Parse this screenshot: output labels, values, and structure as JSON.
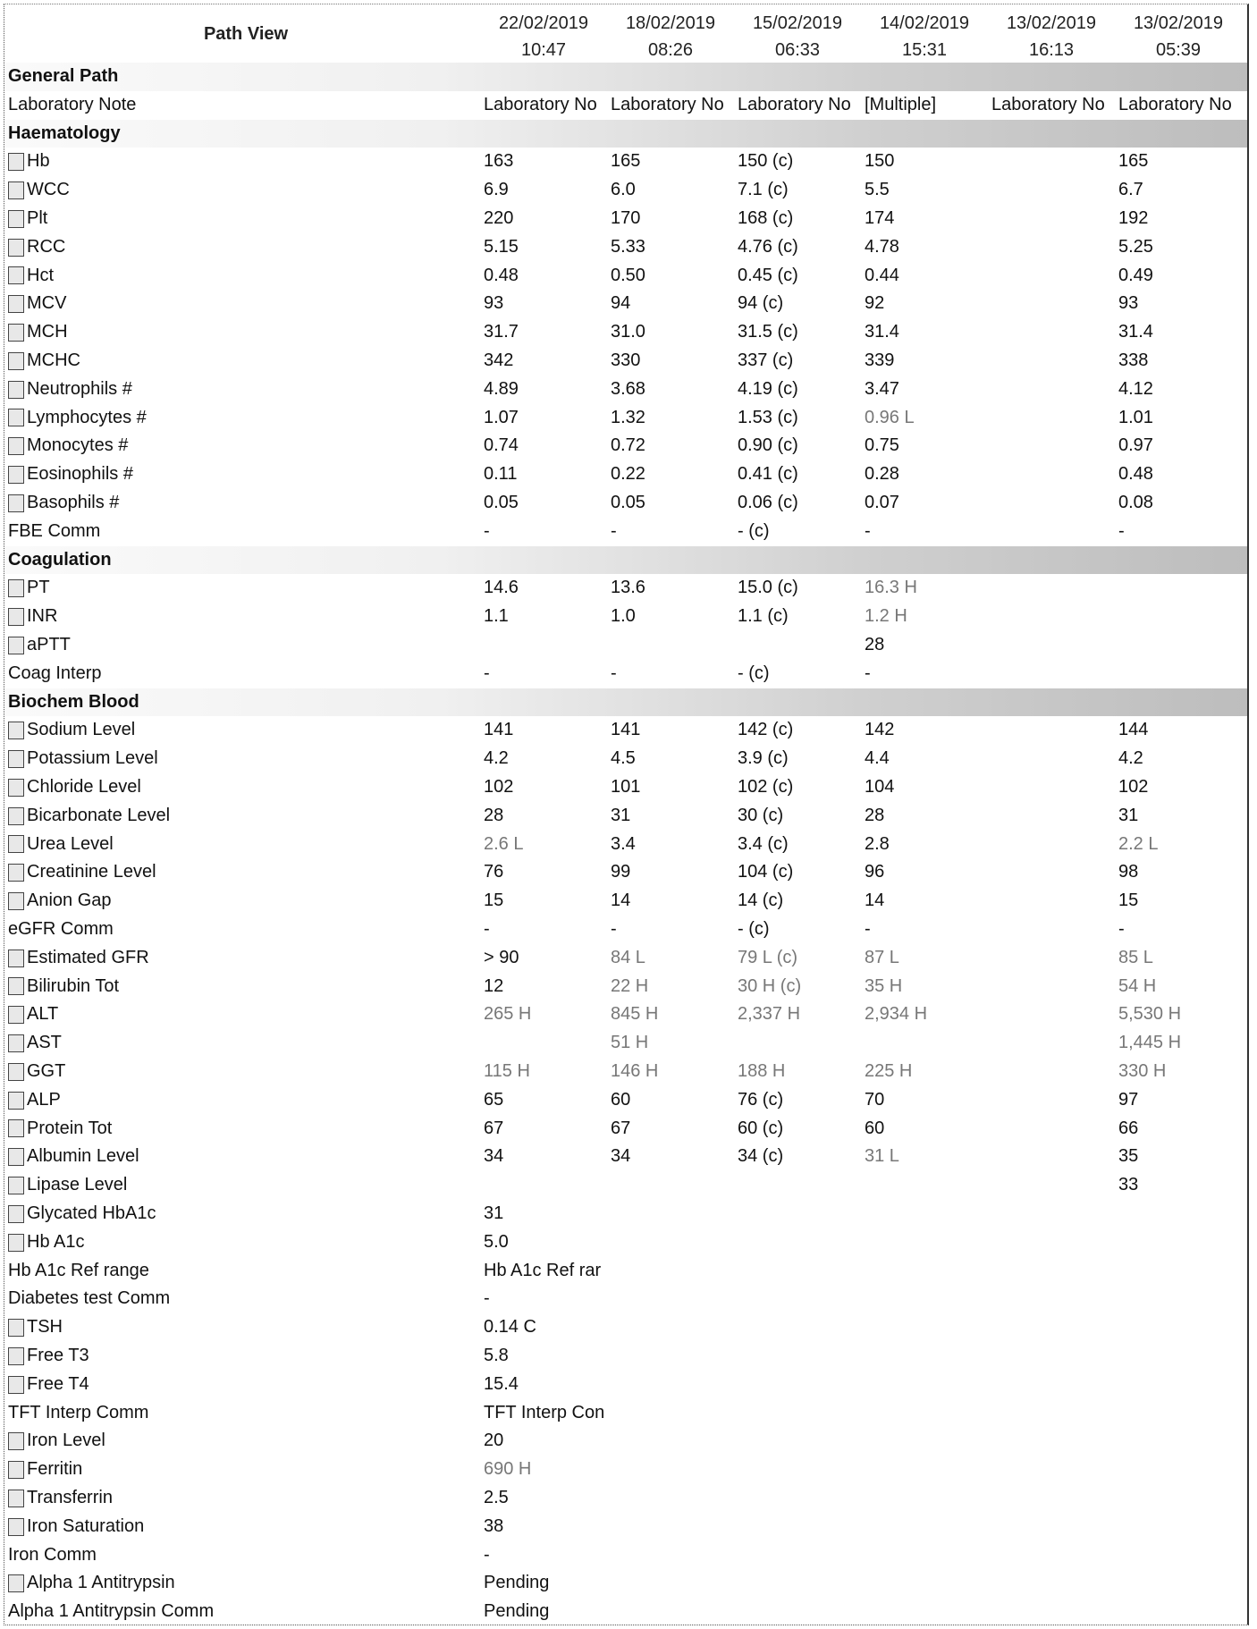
{
  "header": {
    "title": "Path View",
    "columns": [
      {
        "date": "22/02/2019",
        "time": "10:47"
      },
      {
        "date": "18/02/2019",
        "time": "08:26"
      },
      {
        "date": "15/02/2019",
        "time": "06:33"
      },
      {
        "date": "14/02/2019",
        "time": "15:31"
      },
      {
        "date": "13/02/2019",
        "time": "16:13"
      },
      {
        "date": "13/02/2019",
        "time": "05:39"
      }
    ]
  },
  "rows": [
    {
      "section": "General Path"
    },
    {
      "label": "Laboratory Note",
      "cb": false,
      "values": [
        "Laboratory No",
        "Laboratory No",
        "Laboratory No",
        "[Multiple]",
        "Laboratory No",
        "Laboratory No"
      ]
    },
    {
      "section": "Haematology"
    },
    {
      "label": "Hb",
      "cb": true,
      "values": [
        "163",
        "165",
        "150 (c)",
        "150",
        "",
        "165"
      ]
    },
    {
      "label": "WCC",
      "cb": true,
      "values": [
        "6.9",
        "6.0",
        "7.1 (c)",
        "5.5",
        "",
        "6.7"
      ]
    },
    {
      "label": "Plt",
      "cb": true,
      "values": [
        "220",
        "170",
        "168 (c)",
        "174",
        "",
        "192"
      ]
    },
    {
      "label": "RCC",
      "cb": true,
      "values": [
        "5.15",
        "5.33",
        "4.76 (c)",
        "4.78",
        "",
        "5.25"
      ]
    },
    {
      "label": "Hct",
      "cb": true,
      "values": [
        "0.48",
        "0.50",
        "0.45 (c)",
        "0.44",
        "",
        "0.49"
      ]
    },
    {
      "label": "MCV",
      "cb": true,
      "values": [
        "93",
        "94",
        "94 (c)",
        "92",
        "",
        "93"
      ]
    },
    {
      "label": "MCH",
      "cb": true,
      "values": [
        "31.7",
        "31.0",
        "31.5 (c)",
        "31.4",
        "",
        "31.4"
      ]
    },
    {
      "label": "MCHC",
      "cb": true,
      "values": [
        "342",
        "330",
        "337 (c)",
        "339",
        "",
        "338"
      ]
    },
    {
      "label": "Neutrophils #",
      "cb": true,
      "values": [
        "4.89",
        "3.68",
        "4.19 (c)",
        "3.47",
        "",
        "4.12"
      ]
    },
    {
      "label": "Lymphocytes #",
      "cb": true,
      "values": [
        "1.07",
        "1.32",
        "1.53 (c)",
        "0.96 L",
        "",
        "1.01"
      ]
    },
    {
      "label": "Monocytes #",
      "cb": true,
      "values": [
        "0.74",
        "0.72",
        "0.90 (c)",
        "0.75",
        "",
        "0.97"
      ]
    },
    {
      "label": "Eosinophils #",
      "cb": true,
      "values": [
        "0.11",
        "0.22",
        "0.41 (c)",
        "0.28",
        "",
        "0.48"
      ]
    },
    {
      "label": "Basophils #",
      "cb": true,
      "values": [
        "0.05",
        "0.05",
        "0.06 (c)",
        "0.07",
        "",
        "0.08"
      ]
    },
    {
      "label": "FBE Comm",
      "cb": false,
      "values": [
        "-",
        "-",
        "- (c)",
        "-",
        "",
        "-"
      ]
    },
    {
      "section": "Coagulation"
    },
    {
      "label": "PT",
      "cb": true,
      "values": [
        "14.6",
        "13.6",
        "15.0 (c)",
        "16.3 H",
        "",
        ""
      ]
    },
    {
      "label": "INR",
      "cb": true,
      "values": [
        "1.1",
        "1.0",
        "1.1 (c)",
        "1.2 H",
        "",
        ""
      ]
    },
    {
      "label": "aPTT",
      "cb": true,
      "values": [
        "",
        "",
        "",
        "28",
        "",
        ""
      ]
    },
    {
      "label": "Coag Interp",
      "cb": false,
      "values": [
        "-",
        "-",
        "- (c)",
        "-",
        "",
        ""
      ]
    },
    {
      "section": "Biochem Blood"
    },
    {
      "label": "Sodium Level",
      "cb": true,
      "values": [
        "141",
        "141",
        "142 (c)",
        "142",
        "",
        "144"
      ]
    },
    {
      "label": "Potassium Level",
      "cb": true,
      "values": [
        "4.2",
        "4.5",
        "3.9 (c)",
        "4.4",
        "",
        "4.2"
      ]
    },
    {
      "label": "Chloride Level",
      "cb": true,
      "values": [
        "102",
        "101",
        "102 (c)",
        "104",
        "",
        "102"
      ]
    },
    {
      "label": "Bicarbonate Level",
      "cb": true,
      "values": [
        "28",
        "31",
        "30 (c)",
        "28",
        "",
        "31"
      ]
    },
    {
      "label": "Urea Level",
      "cb": true,
      "values": [
        "2.6 L",
        "3.4",
        "3.4 (c)",
        "2.8",
        "",
        "2.2 L"
      ]
    },
    {
      "label": "Creatinine Level",
      "cb": true,
      "values": [
        "76",
        "99",
        "104 (c)",
        "96",
        "",
        "98"
      ]
    },
    {
      "label": "Anion Gap",
      "cb": true,
      "values": [
        "15",
        "14",
        "14 (c)",
        "14",
        "",
        "15"
      ]
    },
    {
      "label": "eGFR Comm",
      "cb": false,
      "values": [
        "-",
        "-",
        "- (c)",
        "-",
        "",
        "-"
      ]
    },
    {
      "label": "Estimated GFR",
      "cb": true,
      "values": [
        "> 90",
        "84 L",
        "79 L (c)",
        "87 L",
        "",
        "85 L"
      ]
    },
    {
      "label": "Bilirubin Tot",
      "cb": true,
      "values": [
        "12",
        "22 H",
        "30 H (c)",
        "35 H",
        "",
        "54 H"
      ]
    },
    {
      "label": "ALT",
      "cb": true,
      "values": [
        "265 H",
        "845 H",
        "2,337 H",
        "2,934 H",
        "",
        "5,530 H"
      ]
    },
    {
      "label": "AST",
      "cb": true,
      "values": [
        "",
        "51 H",
        "",
        "",
        "",
        "1,445 H"
      ]
    },
    {
      "label": "GGT",
      "cb": true,
      "values": [
        "115 H",
        "146 H",
        "188 H",
        "225 H",
        "",
        "330 H"
      ]
    },
    {
      "label": "ALP",
      "cb": true,
      "values": [
        "65",
        "60",
        "76 (c)",
        "70",
        "",
        "97"
      ]
    },
    {
      "label": "Protein Tot",
      "cb": true,
      "values": [
        "67",
        "67",
        "60 (c)",
        "60",
        "",
        "66"
      ]
    },
    {
      "label": "Albumin Level",
      "cb": true,
      "values": [
        "34",
        "34",
        "34 (c)",
        "31 L",
        "",
        "35"
      ]
    },
    {
      "label": "Lipase Level",
      "cb": true,
      "values": [
        "",
        "",
        "",
        "",
        "",
        "33"
      ]
    },
    {
      "label": "Glycated HbA1c",
      "cb": true,
      "values": [
        "31",
        "",
        "",
        "",
        "",
        ""
      ]
    },
    {
      "label": "Hb A1c",
      "cb": true,
      "values": [
        "5.0",
        "",
        "",
        "",
        "",
        ""
      ]
    },
    {
      "label": "Hb A1c Ref range",
      "cb": false,
      "values": [
        "Hb A1c Ref rar",
        "",
        "",
        "",
        "",
        ""
      ]
    },
    {
      "label": "Diabetes test Comm",
      "cb": false,
      "values": [
        "-",
        "",
        "",
        "",
        "",
        ""
      ]
    },
    {
      "label": "TSH",
      "cb": true,
      "values": [
        "0.14 C",
        "",
        "",
        "",
        "",
        ""
      ]
    },
    {
      "label": "Free T3",
      "cb": true,
      "values": [
        "5.8",
        "",
        "",
        "",
        "",
        ""
      ]
    },
    {
      "label": "Free T4",
      "cb": true,
      "values": [
        "15.4",
        "",
        "",
        "",
        "",
        ""
      ]
    },
    {
      "label": "TFT Interp Comm",
      "cb": false,
      "values": [
        "TFT Interp Con",
        "",
        "",
        "",
        "",
        ""
      ]
    },
    {
      "label": "Iron Level",
      "cb": true,
      "values": [
        "20",
        "",
        "",
        "",
        "",
        ""
      ]
    },
    {
      "label": "Ferritin",
      "cb": true,
      "values": [
        "690 H",
        "",
        "",
        "",
        "",
        ""
      ]
    },
    {
      "label": "Transferrin",
      "cb": true,
      "values": [
        "2.5",
        "",
        "",
        "",
        "",
        ""
      ]
    },
    {
      "label": "Iron Saturation",
      "cb": true,
      "values": [
        "38",
        "",
        "",
        "",
        "",
        ""
      ]
    },
    {
      "label": "Iron Comm",
      "cb": false,
      "values": [
        "-",
        "",
        "",
        "",
        "",
        ""
      ]
    },
    {
      "label": "Alpha 1 Antitrypsin",
      "cb": true,
      "values": [
        "Pending",
        "",
        "",
        "",
        "",
        ""
      ]
    },
    {
      "label": "Alpha 1 Antitrypsin Comm",
      "cb": false,
      "values": [
        "Pending",
        "",
        "",
        "",
        "",
        ""
      ]
    }
  ]
}
